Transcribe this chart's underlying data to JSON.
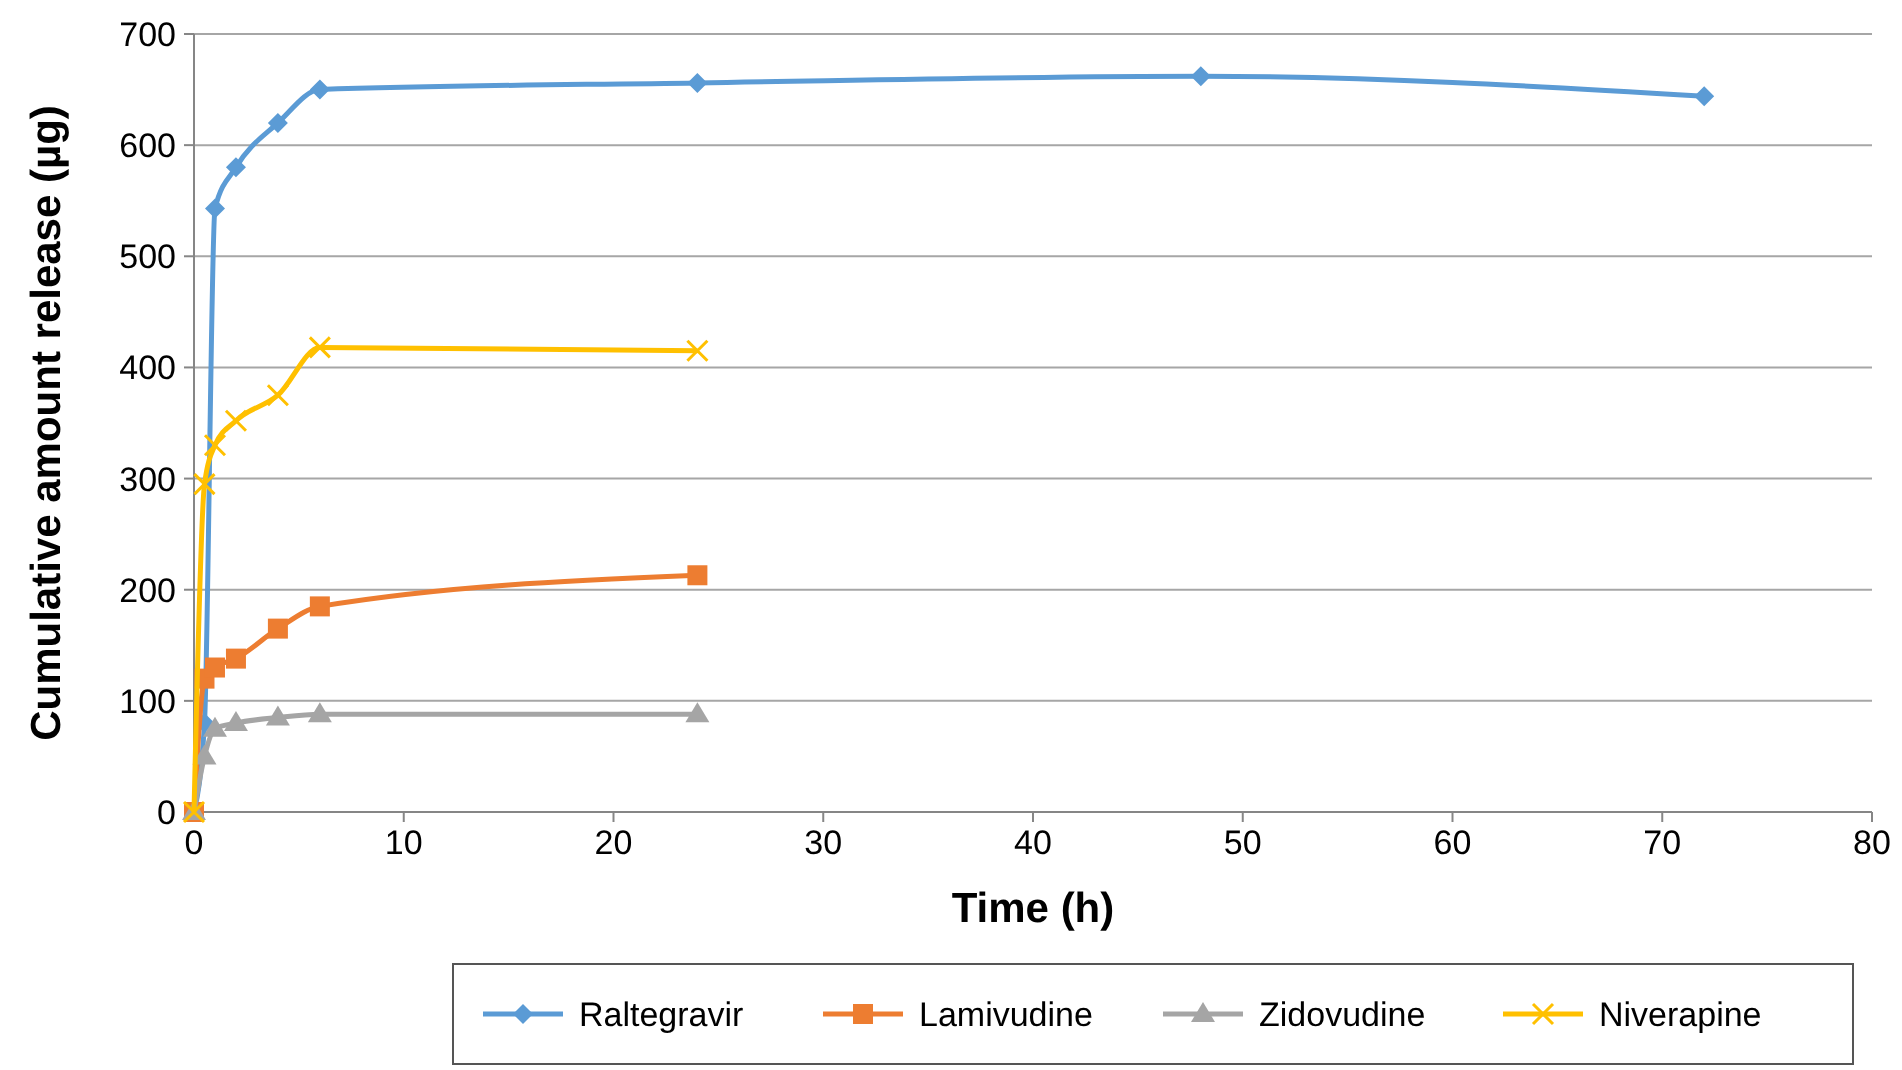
{
  "chart_data": {
    "type": "line",
    "xlabel": "Time (h)",
    "ylabel": "Cumulative amount release (µg)",
    "xlim": [
      0,
      80
    ],
    "xticks": [
      0,
      10,
      20,
      30,
      40,
      50,
      60,
      70,
      80
    ],
    "ylim": [
      0,
      700
    ],
    "yticks": [
      0,
      100,
      200,
      300,
      400,
      500,
      600,
      700
    ],
    "grid": "y",
    "legend": "bottom",
    "series": [
      {
        "name": "Raltegravir",
        "color": "#5b9bd5",
        "marker": "diamond",
        "x": [
          0,
          0.5,
          1,
          2,
          4,
          6,
          24,
          48,
          72
        ],
        "values": [
          0,
          80,
          543,
          580,
          620,
          650,
          656,
          662,
          644
        ]
      },
      {
        "name": "Lamivudine",
        "color": "#ed7d31",
        "marker": "square",
        "x": [
          0,
          0.5,
          1,
          2,
          4,
          6,
          24
        ],
        "values": [
          0,
          120,
          130,
          138,
          165,
          185,
          213
        ]
      },
      {
        "name": "Zidovudine",
        "color": "#a5a5a5",
        "marker": "triangle",
        "x": [
          0,
          0.5,
          1,
          2,
          4,
          6,
          24
        ],
        "values": [
          0,
          50,
          75,
          80,
          85,
          88,
          88
        ]
      },
      {
        "name": "Niverapine",
        "color": "#ffc000",
        "marker": "cross",
        "x": [
          0,
          0.5,
          1,
          2,
          4,
          6,
          24
        ],
        "values": [
          0,
          295,
          330,
          352,
          375,
          418,
          415
        ]
      }
    ]
  }
}
